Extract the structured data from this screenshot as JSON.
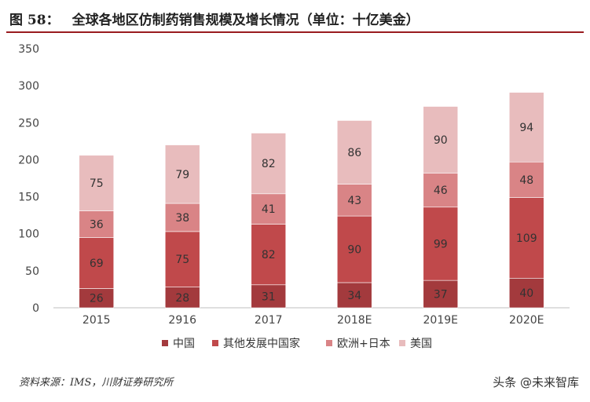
{
  "figure": {
    "label": "图 58：",
    "title": "全球各地区仿制药销售规模及增长情况（单位：十亿美金）",
    "source": "资料来源：IMS，川财证券研究所",
    "watermark": "头条 @未来智库"
  },
  "chart_data": {
    "type": "bar",
    "stacked": true,
    "categories": [
      "2015",
      "2916",
      "2017",
      "2018E",
      "2019E",
      "2020E"
    ],
    "series": [
      {
        "name": "中国",
        "color": "#a33a3d",
        "values": [
          26,
          28,
          31,
          34,
          37,
          40
        ]
      },
      {
        "name": "其他发展中国家",
        "color": "#c0494b",
        "values": [
          69,
          75,
          82,
          90,
          99,
          109
        ]
      },
      {
        "name": "欧洲+日本",
        "color": "#d98486",
        "values": [
          36,
          38,
          41,
          43,
          46,
          48
        ]
      },
      {
        "name": "美国",
        "color": "#e8bcbd",
        "values": [
          75,
          79,
          82,
          86,
          90,
          94
        ]
      }
    ],
    "yticks": [
      0,
      50,
      100,
      150,
      200,
      250,
      300,
      350
    ],
    "ylim": [
      0,
      350
    ],
    "legend_position": "bottom",
    "grid": false
  }
}
